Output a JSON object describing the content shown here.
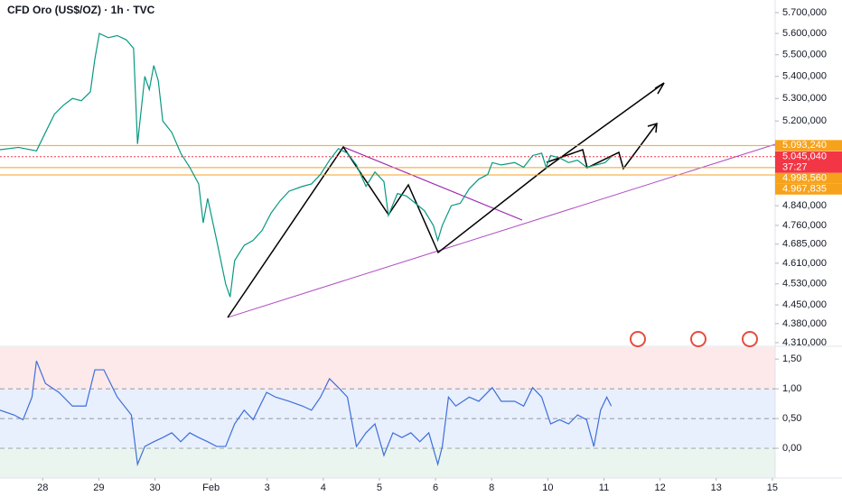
{
  "chart_data": [
    {
      "type": "line",
      "title": "CFD Oro (US$/OZ) · 1h · TVC",
      "log_scale": true,
      "xlim": [
        -0.76,
        13.05
      ],
      "ylim": [
        4300,
        5761
      ],
      "xticks": [
        {
          "value": 0,
          "label": "28"
        },
        {
          "value": 1,
          "label": "29"
        },
        {
          "value": 2,
          "label": "30"
        },
        {
          "value": 3,
          "label": "Feb"
        },
        {
          "value": 4,
          "label": "3"
        },
        {
          "value": 5,
          "label": "4"
        },
        {
          "value": 6,
          "label": "5"
        },
        {
          "value": 7,
          "label": "6"
        },
        {
          "value": 8,
          "label": "8"
        },
        {
          "value": 9,
          "label": "10"
        },
        {
          "value": 10,
          "label": "11"
        },
        {
          "value": 11,
          "label": "12"
        },
        {
          "value": 12,
          "label": "13"
        },
        {
          "value": 13,
          "label": "15"
        }
      ],
      "yticks": [
        {
          "value": 5700,
          "label": "5.700,000"
        },
        {
          "value": 5600,
          "label": "5.600,000"
        },
        {
          "value": 5500,
          "label": "5.500,000"
        },
        {
          "value": 5400,
          "label": "5.400,000"
        },
        {
          "value": 5300,
          "label": "5.300,000"
        },
        {
          "value": 5200,
          "label": "5.200,000"
        },
        {
          "value": 4840,
          "label": "4.840,000"
        },
        {
          "value": 4760,
          "label": "4.760,000"
        },
        {
          "value": 4685,
          "label": "4.685,000"
        },
        {
          "value": 4610,
          "label": "4.610,000"
        },
        {
          "value": 4530,
          "label": "4.530,000"
        },
        {
          "value": 4450,
          "label": "4.450,000"
        },
        {
          "value": 4380,
          "label": "4.380,000"
        },
        {
          "value": 4310,
          "label": "4.310,000"
        }
      ],
      "series": [
        {
          "color": "#089981",
          "x": [
            -0.76,
            -0.43,
            -0.11,
            0.05,
            0.21,
            0.37,
            0.53,
            0.69,
            0.85,
            0.93,
            1.01,
            1.17,
            1.33,
            1.49,
            1.62,
            1.69,
            1.82,
            1.9,
            1.98,
            2.06,
            2.14,
            2.3,
            2.46,
            2.62,
            2.78,
            2.86,
            2.94,
            3.1,
            3.26,
            3.34,
            3.42,
            3.59,
            3.75,
            3.91,
            4.07,
            4.23,
            4.39,
            4.63,
            4.79,
            4.95,
            5.11,
            5.27,
            5.43,
            5.59,
            5.76,
            5.92,
            6.08,
            6.16,
            6.32,
            6.48,
            6.64,
            6.8,
            6.96,
            7.04,
            7.12,
            7.28,
            7.44,
            7.6,
            7.77,
            7.93,
            8.01,
            8.17,
            8.41,
            8.57,
            8.73,
            8.89,
            8.97,
            9.05,
            9.21,
            9.37,
            9.53,
            9.69,
            9.86,
            10.02,
            10.13
          ],
          "values": [
            5075,
            5085,
            5070,
            5150,
            5230,
            5270,
            5300,
            5290,
            5330,
            5480,
            5600,
            5580,
            5590,
            5570,
            5530,
            5100,
            5400,
            5340,
            5450,
            5380,
            5200,
            5150,
            5060,
            5000,
            4930,
            4770,
            4870,
            4700,
            4530,
            4480,
            4620,
            4680,
            4700,
            4740,
            4810,
            4860,
            4900,
            4920,
            4930,
            4970,
            5030,
            5080,
            5060,
            5010,
            4920,
            4980,
            4940,
            4800,
            4890,
            4880,
            4850,
            4820,
            4760,
            4700,
            4760,
            4840,
            4850,
            4910,
            4950,
            4970,
            5020,
            5010,
            5020,
            5000,
            5050,
            5060,
            5000,
            5050,
            5040,
            5020,
            5030,
            5000,
            5010,
            5020,
            5045
          ]
        }
      ],
      "levels": [
        {
          "value": 5093.24,
          "label": "5.093,240",
          "color": "#f7a21b"
        },
        {
          "value": 5045.04,
          "label": "5.045,040",
          "color": "#f23645",
          "countdown": "37:27"
        },
        {
          "value": 4998.56,
          "label": "4.998,560",
          "color": "#f7a21b"
        },
        {
          "value": 4967.835,
          "label": "4.967,835",
          "color": "#f7a21b"
        }
      ]
    },
    {
      "type": "line",
      "xlim": [
        -0.76,
        13.05
      ],
      "ylim": [
        -0.5,
        1.7
      ],
      "yticks": [
        {
          "value": 1.5,
          "label": "1,50"
        },
        {
          "value": 1,
          "label": "1,00"
        },
        {
          "value": 0.5,
          "label": "0,50"
        },
        {
          "value": 0,
          "label": "0,00"
        }
      ],
      "bands": [
        {
          "from": 1,
          "to": 1.7,
          "color": "#fde9ea"
        },
        {
          "from": 0,
          "to": 1,
          "color": "#e8effd"
        },
        {
          "from": -0.5,
          "to": 0,
          "color": "#e9f5ee"
        }
      ],
      "series": [
        {
          "color": "#3d6fd9",
          "x": [
            -0.76,
            -0.51,
            -0.35,
            -0.19,
            -0.11,
            0.05,
            0.29,
            0.53,
            0.77,
            0.93,
            1.09,
            1.33,
            1.58,
            1.69,
            1.82,
            1.98,
            2.14,
            2.3,
            2.46,
            2.62,
            2.78,
            2.94,
            3.1,
            3.26,
            3.42,
            3.59,
            3.75,
            3.99,
            4.15,
            4.39,
            4.63,
            4.79,
            4.95,
            5.11,
            5.27,
            5.43,
            5.59,
            5.76,
            5.92,
            6.08,
            6.24,
            6.4,
            6.56,
            6.72,
            6.88,
            7.04,
            7.12,
            7.23,
            7.36,
            7.6,
            7.77,
            8.01,
            8.17,
            8.41,
            8.57,
            8.73,
            8.89,
            9.05,
            9.21,
            9.37,
            9.53,
            9.69,
            9.82,
            9.94,
            10.05,
            10.13
          ],
          "values": [
            0.64,
            0.56,
            0.48,
            0.86,
            1.47,
            1.09,
            0.94,
            0.71,
            0.71,
            1.32,
            1.32,
            0.86,
            0.56,
            -0.27,
            0.03,
            0.11,
            0.18,
            0.26,
            0.11,
            0.26,
            0.18,
            0.11,
            0.03,
            0.03,
            0.41,
            0.64,
            0.48,
            0.94,
            0.86,
            0.79,
            0.71,
            0.64,
            0.86,
            1.17,
            1.02,
            0.86,
            0.03,
            0.26,
            0.41,
            -0.12,
            0.26,
            0.18,
            0.26,
            0.11,
            0.26,
            -0.27,
            0.03,
            0.86,
            0.71,
            0.86,
            0.79,
            1.02,
            0.79,
            0.79,
            0.71,
            1.02,
            0.86,
            0.41,
            0.48,
            0.41,
            0.56,
            0.48,
            0.03,
            0.64,
            0.86,
            0.71
          ]
        }
      ]
    }
  ]
}
